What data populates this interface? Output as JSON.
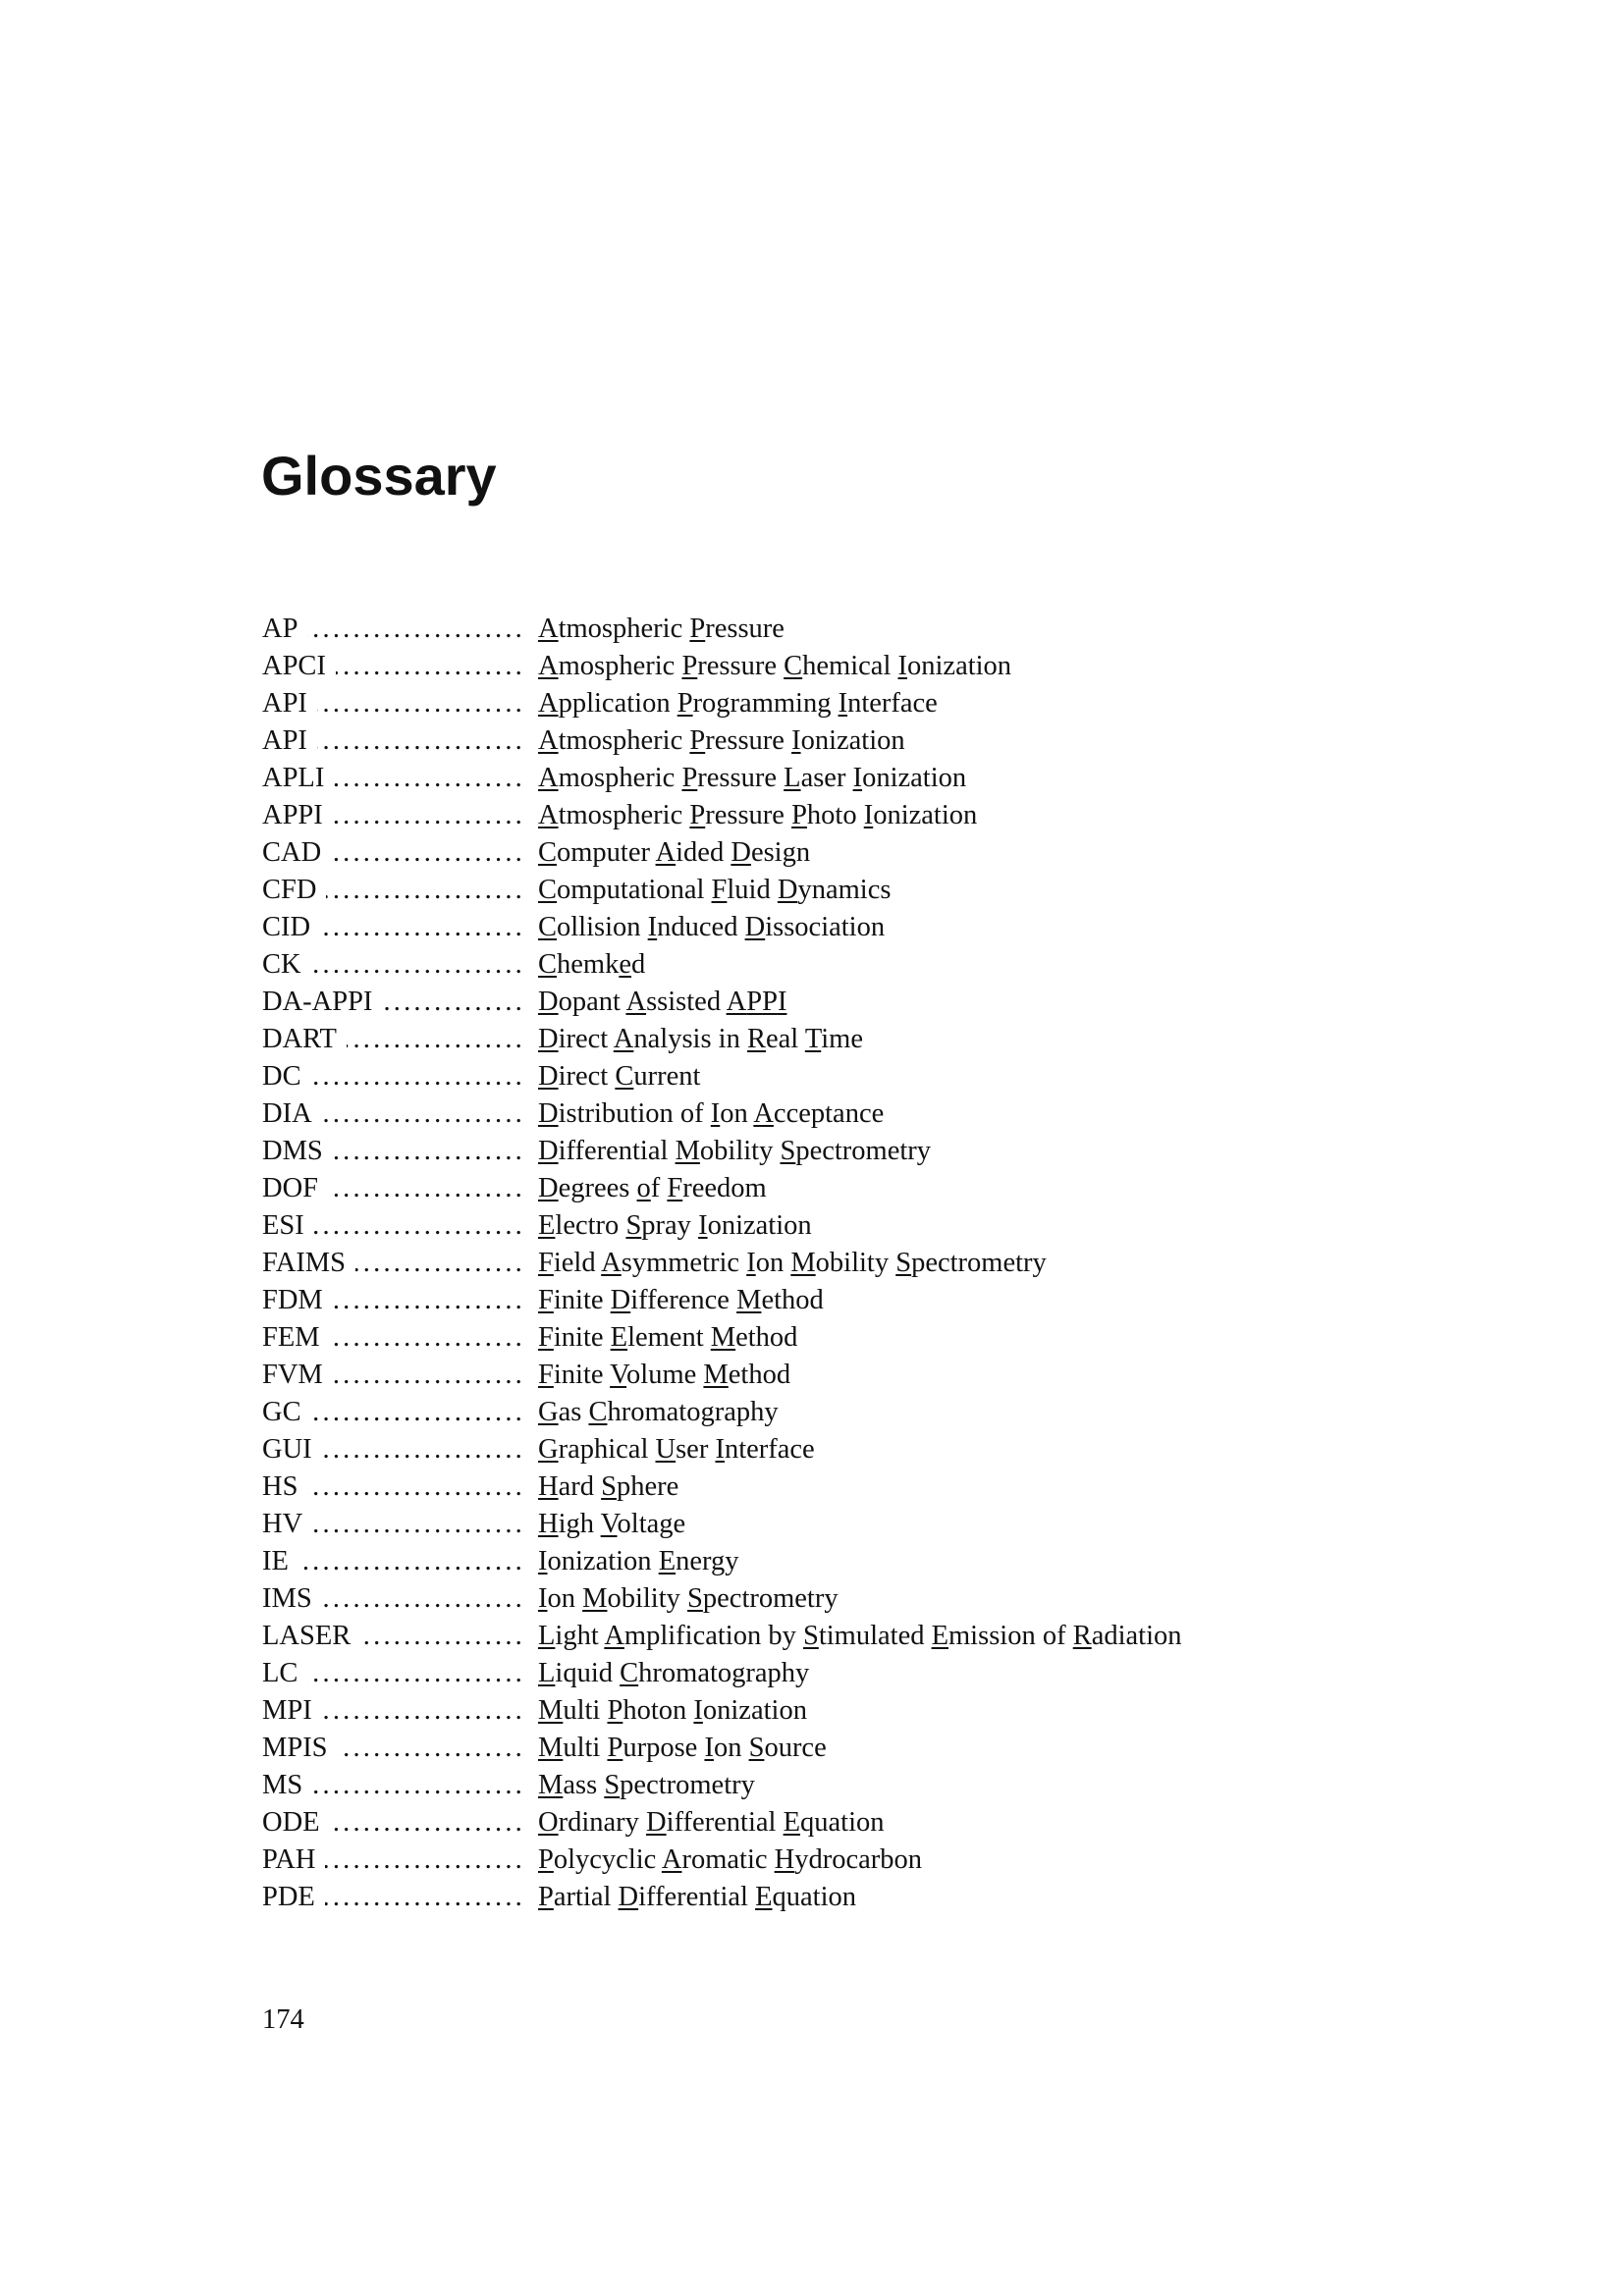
{
  "title": "Glossary",
  "page_number": "174",
  "entries": [
    {
      "term": "AP",
      "definition": "Atmospheric Pressure"
    },
    {
      "term": "APCI",
      "definition": "Amospheric Pressure Chemical Ionization"
    },
    {
      "term": "API",
      "definition": "Application Programming Interface"
    },
    {
      "term": "API",
      "definition": "Atmospheric Pressure Ionization"
    },
    {
      "term": "APLI",
      "definition": "Amospheric Pressure Laser Ionization"
    },
    {
      "term": "APPI",
      "definition": "Atmospheric Pressure Photo Ionization"
    },
    {
      "term": "CAD",
      "definition": "Computer Aided Design"
    },
    {
      "term": "CFD",
      "definition": "Computational Fluid Dynamics"
    },
    {
      "term": "CID",
      "definition": "Collision Induced Dissociation"
    },
    {
      "term": "CK",
      "definition": "Chemked",
      "extra_marks": [
        5
      ]
    },
    {
      "term": "DA-APPI",
      "definition": "Dopant Assisted APPI",
      "full_words": [
        "APPI"
      ]
    },
    {
      "term": "DART",
      "definition": "Direct Analysis in Real Time"
    },
    {
      "term": "DC",
      "definition": "Direct Current"
    },
    {
      "term": "DIA",
      "definition": "Distribution of Ion Acceptance"
    },
    {
      "term": "DMS",
      "definition": "Differential Mobility Spectrometry"
    },
    {
      "term": "DOF",
      "definition": "Degrees of Freedom",
      "marked_words": [
        "of"
      ]
    },
    {
      "term": "ESI",
      "definition": "Electro Spray Ionization"
    },
    {
      "term": "FAIMS",
      "definition": "Field Asymmetric Ion Mobility Spectrometry"
    },
    {
      "term": "FDM",
      "definition": "Finite Difference Method"
    },
    {
      "term": "FEM",
      "definition": "Finite Element Method"
    },
    {
      "term": "FVM",
      "definition": "Finite Volume Method"
    },
    {
      "term": "GC",
      "definition": "Gas Chromatography"
    },
    {
      "term": "GUI",
      "definition": "Graphical User Interface"
    },
    {
      "term": "HS",
      "definition": "Hard Sphere"
    },
    {
      "term": "HV",
      "definition": "High Voltage"
    },
    {
      "term": "IE",
      "definition": "Ionization Energy"
    },
    {
      "term": "IMS",
      "definition": "Ion Mobility Spectrometry"
    },
    {
      "term": "LASER",
      "definition": "Light Amplification by Stimulated Emission of Radiation"
    },
    {
      "term": "LC",
      "definition": "Liquid Chromatography"
    },
    {
      "term": "MPI",
      "definition": "Multi Photon Ionization"
    },
    {
      "term": "MPIS",
      "definition": "Multi Purpose Ion Source"
    },
    {
      "term": "MS",
      "definition": "Mass Spectrometry"
    },
    {
      "term": "ODE",
      "definition": "Ordinary Differential Equation"
    },
    {
      "term": "PAH",
      "definition": "Polycyclic Aromatic Hydrocarbon"
    },
    {
      "term": "PDE",
      "definition": "Partial Differential Equation"
    }
  ]
}
